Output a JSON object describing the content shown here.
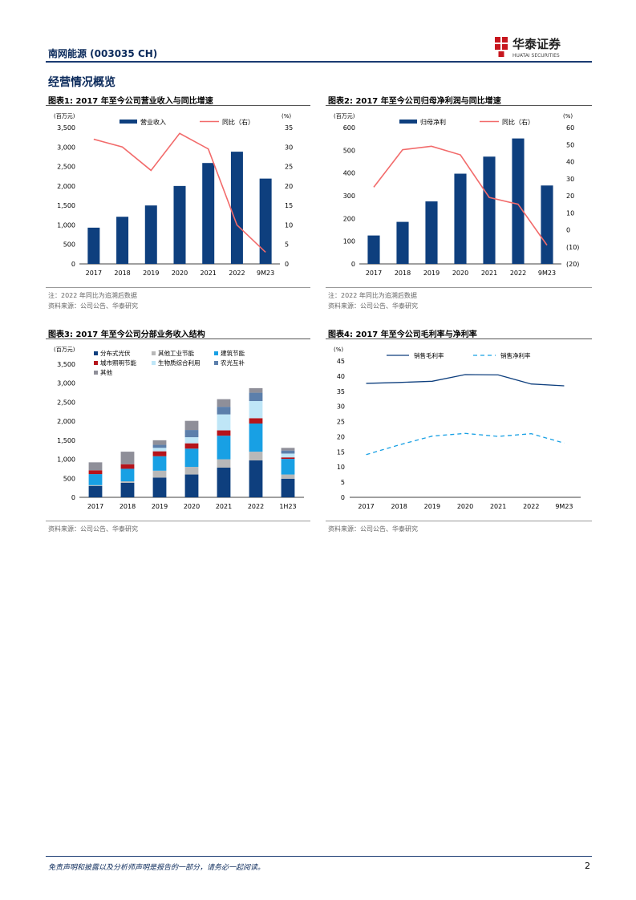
{
  "header": {
    "stock_label": "南网能源 (003035 CH)",
    "brand_cn": "华泰证券",
    "brand_en": "HUATAI SECURITIES",
    "brand_color": "#c7161e",
    "navy": "#0b2a5b"
  },
  "section": {
    "title": "经营情况概览"
  },
  "figures": {
    "fig1": {
      "title": "图表1:  2017 年至今公司营业收入与同比增速",
      "note": "注：2022 年同比为追溯后数据",
      "source": "资料来源：公司公告、华泰研究"
    },
    "fig2": {
      "title": "图表2:  2017 年至今公司归母净利润与同比增速",
      "note": "注：2022 年同比为追溯后数据",
      "source": "资料来源：公司公告、华泰研究"
    },
    "fig3": {
      "title": "图表3:  2017 年至今公司分部业务收入结构",
      "source": "资料来源：公司公告、华泰研究"
    },
    "fig4": {
      "title": "图表4:  2017 年至今公司毛利率与净利率",
      "source": "资料来源：公司公告、华泰研究"
    }
  },
  "chart_data": [
    {
      "id": "revenue",
      "type": "bar",
      "categories": [
        "2017",
        "2018",
        "2019",
        "2020",
        "2021",
        "2022",
        "9M23"
      ],
      "series": [
        {
          "name": "营业收入",
          "axis": "left",
          "kind": "bar",
          "values": [
            930,
            1210,
            1500,
            2000,
            2590,
            2880,
            2190
          ]
        },
        {
          "name": "同比（右）",
          "axis": "right",
          "kind": "line",
          "values": [
            32,
            30,
            24,
            33.5,
            29.5,
            10,
            3
          ]
        }
      ],
      "left_unit": "(百万元)",
      "right_unit": "(%)",
      "ylim": [
        0,
        3500
      ],
      "yticks": [
        0,
        500,
        1000,
        1500,
        2000,
        2500,
        3000,
        3500
      ],
      "yticklabels": [
        "0",
        "500",
        "1,000",
        "1,500",
        "2,000",
        "2,500",
        "3,000",
        "3,500"
      ],
      "ylim_right": [
        0,
        35
      ],
      "yticks_right": [
        0,
        5,
        10,
        15,
        20,
        25,
        30,
        35
      ],
      "yticklabels_right": [
        "0",
        "5",
        "10",
        "15",
        "20",
        "25",
        "30",
        "35"
      ],
      "colors": {
        "bar": "#0e3f7e",
        "line": "#f26b6b"
      }
    },
    {
      "id": "net_profit",
      "type": "bar",
      "categories": [
        "2017",
        "2018",
        "2019",
        "2020",
        "2021",
        "2022",
        "9M23"
      ],
      "series": [
        {
          "name": "归母净利",
          "axis": "left",
          "kind": "bar",
          "values": [
            125,
            185,
            275,
            397,
            472,
            552,
            345
          ]
        },
        {
          "name": "同比（右）",
          "axis": "right",
          "kind": "line",
          "values": [
            25,
            47,
            49,
            44,
            19,
            15,
            -9
          ]
        }
      ],
      "left_unit": "(百万元)",
      "right_unit": "(%)",
      "ylim": [
        0,
        600
      ],
      "yticks": [
        0,
        100,
        200,
        300,
        400,
        500,
        600
      ],
      "yticklabels": [
        "0",
        "100",
        "200",
        "300",
        "400",
        "500",
        "600"
      ],
      "ylim_right": [
        -20,
        60
      ],
      "yticks_right": [
        -20,
        -10,
        0,
        10,
        20,
        30,
        40,
        50,
        60
      ],
      "yticklabels_right": [
        "(20)",
        "(10)",
        "0",
        "10",
        "20",
        "30",
        "40",
        "50",
        "60"
      ],
      "colors": {
        "bar": "#0e3f7e",
        "line": "#f26b6b"
      }
    },
    {
      "id": "segments",
      "type": "bar",
      "stacked": true,
      "categories": [
        "2017",
        "2018",
        "2019",
        "2020",
        "2021",
        "2022",
        "1H23"
      ],
      "series": [
        {
          "name": "分布式光伏",
          "color": "#0e3f7e",
          "values": [
            300,
            380,
            520,
            600,
            780,
            970,
            490
          ]
        },
        {
          "name": "其他工业节能",
          "color": "#b8b8b8",
          "values": [
            20,
            40,
            180,
            200,
            220,
            230,
            110
          ]
        },
        {
          "name": "建筑节能",
          "color": "#18a0e4",
          "values": [
            290,
            330,
            380,
            480,
            620,
            740,
            410
          ]
        },
        {
          "name": "城市照明节能",
          "color": "#b5141b",
          "values": [
            100,
            120,
            130,
            140,
            140,
            140,
            40
          ]
        },
        {
          "name": "生物质综合利用",
          "color": "#bfe6f7",
          "values": [
            0,
            0,
            90,
            160,
            420,
            450,
            100
          ]
        },
        {
          "name": "农光互补",
          "color": "#5c7fab",
          "values": [
            0,
            0,
            80,
            190,
            200,
            220,
            80
          ]
        },
        {
          "name": "其他",
          "color": "#8f8f99",
          "values": [
            210,
            330,
            120,
            240,
            200,
            120,
            70
          ]
        }
      ],
      "unit": "(百万元)",
      "ylim": [
        0,
        3500
      ],
      "yticks": [
        0,
        500,
        1000,
        1500,
        2000,
        2500,
        3000,
        3500
      ],
      "yticklabels": [
        "0",
        "500",
        "1,000",
        "1,500",
        "2,000",
        "2,500",
        "3,000",
        "3,500"
      ]
    },
    {
      "id": "margins",
      "type": "line",
      "categories": [
        "2017",
        "2018",
        "2019",
        "2020",
        "2021",
        "2022",
        "9M23"
      ],
      "series": [
        {
          "name": "销售毛利率",
          "color": "#0e3f7e",
          "style": "solid",
          "values": [
            37.6,
            37.9,
            38.3,
            40.5,
            40.4,
            37.4,
            36.8
          ]
        },
        {
          "name": "销售净利率",
          "color": "#18a0e4",
          "style": "dashed",
          "values": [
            14.1,
            17.3,
            20.2,
            21.1,
            20.1,
            21,
            17.9
          ]
        }
      ],
      "unit": "(%)",
      "ylim": [
        0,
        45
      ],
      "yticks": [
        0,
        5,
        10,
        15,
        20,
        25,
        30,
        35,
        40,
        45
      ],
      "yticklabels": [
        "0",
        "5",
        "10",
        "15",
        "20",
        "25",
        "30",
        "35",
        "40",
        "45"
      ]
    }
  ],
  "footer": {
    "disclaimer": "免责声明和披露以及分析师声明是报告的一部分，请务必一起阅读。",
    "page_number": "2"
  }
}
